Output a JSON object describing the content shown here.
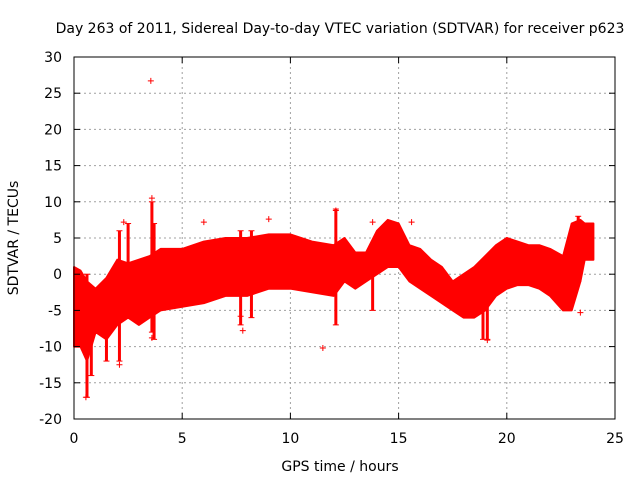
{
  "chart_data": {
    "type": "scatter",
    "title": "Day 263 of 2011, Sidereal Day-to-day VTEC variation (SDTVAR) for receiver p623",
    "xlabel": "GPS time / hours",
    "ylabel": "SDTVAR / TECUs",
    "xlim": [
      0,
      25
    ],
    "ylim": [
      -20,
      30
    ],
    "xticks": [
      0,
      5,
      10,
      15,
      20,
      25
    ],
    "xtick_labels": [
      "0",
      "5",
      "10",
      "15",
      "20",
      "25"
    ],
    "yticks": [
      -20,
      -15,
      -10,
      -5,
      0,
      5,
      10,
      15,
      20,
      25,
      30
    ],
    "ytick_labels": [
      "-20",
      "-15",
      "-10",
      "-5",
      "0",
      "5",
      "10",
      "15",
      "20",
      "25",
      "30"
    ],
    "grid": true,
    "marker": "+",
    "color": "#ff0000",
    "band": {
      "x": [
        0,
        0.3,
        0.6,
        1,
        1.5,
        2,
        2.5,
        3,
        3.5,
        4,
        5,
        6,
        7,
        8,
        9,
        10,
        11,
        12,
        12.5,
        13,
        13.5,
        14,
        14.5,
        15,
        15.5,
        16,
        16.5,
        17,
        17.5,
        18,
        18.5,
        19,
        19.5,
        20,
        20.5,
        21,
        21.5,
        22,
        22.3,
        22.6,
        23,
        23.4,
        23.6,
        24
      ],
      "upper": [
        1,
        0.5,
        -1,
        -2,
        -0.5,
        2,
        1.5,
        2,
        2.5,
        3.5,
        3.5,
        4.5,
        5,
        5,
        5.5,
        5.5,
        4.5,
        4,
        5,
        3,
        3,
        6,
        7.5,
        7,
        4,
        3.5,
        2,
        1,
        -1,
        0,
        1,
        2.5,
        4,
        5,
        4.5,
        4,
        4,
        3.5,
        3,
        2.5,
        7,
        7.5,
        7,
        7
      ],
      "lower": [
        -10,
        -10,
        -12,
        -8,
        -9,
        -7,
        -6,
        -7,
        -6,
        -5,
        -4.5,
        -4,
        -3,
        -3,
        -2,
        -2,
        -2.5,
        -3,
        -1,
        -2,
        -1,
        0,
        1,
        1,
        -1,
        -2,
        -3,
        -4,
        -5,
        -6,
        -6,
        -5,
        -3,
        -2,
        -1.5,
        -1.5,
        -2,
        -3,
        -4,
        -5,
        -5,
        -1,
        2,
        2
      ]
    },
    "spikes": [
      {
        "x": 0.3,
        "lo": -10,
        "hi": 0
      },
      {
        "x": 0.6,
        "lo": -17,
        "hi": 0
      },
      {
        "x": 0.8,
        "lo": -14,
        "hi": -2
      },
      {
        "x": 1.5,
        "lo": -12,
        "hi": -2
      },
      {
        "x": 2.1,
        "lo": -12,
        "hi": 6
      },
      {
        "x": 2.5,
        "lo": -4,
        "hi": 7
      },
      {
        "x": 3.6,
        "lo": -8,
        "hi": 10
      },
      {
        "x": 3.7,
        "lo": -9,
        "hi": 7
      },
      {
        "x": 7.7,
        "lo": -7,
        "hi": 6
      },
      {
        "x": 8.2,
        "lo": -6,
        "hi": 6
      },
      {
        "x": 12.1,
        "lo": -7,
        "hi": 9
      },
      {
        "x": 13.8,
        "lo": -5,
        "hi": 3
      },
      {
        "x": 18.9,
        "lo": -9,
        "hi": -2
      },
      {
        "x": 19.1,
        "lo": -9,
        "hi": 0
      },
      {
        "x": 23.3,
        "lo": -1,
        "hi": 8
      }
    ],
    "outliers": [
      {
        "x": 3.55,
        "y": 26.7
      },
      {
        "x": 2.3,
        "y": 7.2
      },
      {
        "x": 3.6,
        "y": 10.5
      },
      {
        "x": 6.0,
        "y": 7.2
      },
      {
        "x": 9.0,
        "y": 7.6
      },
      {
        "x": 11.5,
        "y": -10.2
      },
      {
        "x": 7.8,
        "y": -7.8
      },
      {
        "x": 13.8,
        "y": 7.2
      },
      {
        "x": 15.6,
        "y": 7.2
      },
      {
        "x": 12.1,
        "y": 8.8
      },
      {
        "x": 0.55,
        "y": -17.0
      },
      {
        "x": 23.4,
        "y": -5.3
      },
      {
        "x": 19.1,
        "y": -9.1
      },
      {
        "x": 2.1,
        "y": -12.5
      },
      {
        "x": 3.6,
        "y": -8.8
      },
      {
        "x": 7.7,
        "y": -5.8
      }
    ]
  }
}
